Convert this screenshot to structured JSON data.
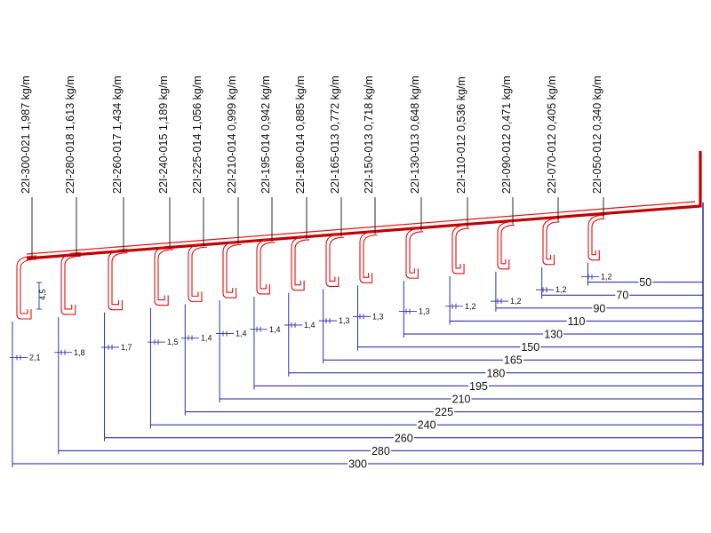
{
  "title": "",
  "profiles": [
    {
      "code": "22I-300-021",
      "mass": "1,987 kg/m",
      "length": "300",
      "thickness": "2,1"
    },
    {
      "code": "22I-280-018",
      "mass": "1,613 kg/m",
      "length": "280",
      "thickness": "1,8"
    },
    {
      "code": "22I-260-017",
      "mass": "1,434 kg/m",
      "length": "260",
      "thickness": "1,7"
    },
    {
      "code": "22I-240-015",
      "mass": "1,189 kg/m",
      "length": "240",
      "thickness": "1,5"
    },
    {
      "code": "22I-225-014",
      "mass": "1,056 kg/m",
      "length": "225",
      "thickness": "1,4"
    },
    {
      "code": "22I-210-014",
      "mass": "0,999 kg/m",
      "length": "210",
      "thickness": "1,4"
    },
    {
      "code": "22I-195-014",
      "mass": "0,942 kg/m",
      "length": "195",
      "thickness": "1,4"
    },
    {
      "code": "22I-180-014",
      "mass": "0,885 kg/m",
      "length": "180",
      "thickness": "1,4"
    },
    {
      "code": "22I-165-013",
      "mass": "0,772 kg/m",
      "length": "165",
      "thickness": "1,3"
    },
    {
      "code": "22I-150-013",
      "mass": "0,718 kg/m",
      "length": "150",
      "thickness": "1,3"
    },
    {
      "code": "22I-130-013",
      "mass": "0,648 kg/m",
      "length": "130",
      "thickness": "1,3"
    },
    {
      "code": "22I-110-012",
      "mass": "0,536 kg/m",
      "length": "110",
      "thickness": "1,2"
    },
    {
      "code": "22I-090-012",
      "mass": "0,471 kg/m",
      "length": "90",
      "thickness": "1,2"
    },
    {
      "code": "22I-070-012",
      "mass": "0,405 kg/m",
      "length": "70",
      "thickness": "1,2"
    },
    {
      "code": "22I-050-012",
      "mass": "0,340 kg/m",
      "length": "50",
      "thickness": "1,2"
    }
  ],
  "lip_dimension": "4,5",
  "colors": {
    "profile": "#e01010",
    "profile_bold": "#c00000",
    "dimension": "#1a1aa8",
    "leader": "#111111",
    "text": "#111111"
  }
}
